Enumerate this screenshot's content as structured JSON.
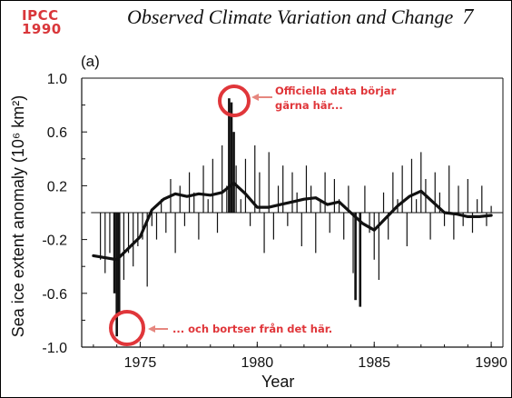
{
  "badge": {
    "line1": "IPCC",
    "line2": "1990"
  },
  "header": {
    "title": "Observed Climate Variation and Change",
    "page_number": "7"
  },
  "panel_label": "(a)",
  "annotations": {
    "top_line1": "Officiella data börjar",
    "top_line2": "gärna här...",
    "bottom": "... och bortser från det här.",
    "color": "#e0363a"
  },
  "chart_data": {
    "type": "bar",
    "xlabel": "Year",
    "ylabel": "Sea ice extent anomaly (10⁶ km²)",
    "xlim": [
      1972.5,
      1990.5
    ],
    "ylim": [
      -1.0,
      1.0
    ],
    "x_ticks": [
      "1975",
      "1980",
      "1985",
      "1990"
    ],
    "y_ticks": [
      "1.0",
      "0.6",
      "0.2",
      "-0.2",
      "-0.6",
      "-1.0"
    ],
    "grid": false,
    "series": [
      {
        "kind": "bars",
        "x": [
          1973.3,
          1973.5,
          1973.7,
          1973.9,
          1974.0,
          1974.1,
          1974.3,
          1974.5,
          1974.7,
          1974.9,
          1975.1,
          1975.3,
          1975.5,
          1975.7,
          1975.9,
          1976.1,
          1976.3,
          1976.5,
          1976.7,
          1976.9,
          1977.1,
          1977.3,
          1977.5,
          1977.7,
          1977.9,
          1978.1,
          1978.3,
          1978.5,
          1978.7,
          1978.8,
          1978.9,
          1979.0,
          1979.1,
          1979.3,
          1979.5,
          1979.7,
          1979.9,
          1980.1,
          1980.3,
          1980.5,
          1980.7,
          1980.9,
          1981.1,
          1981.3,
          1981.5,
          1981.7,
          1981.9,
          1982.1,
          1982.3,
          1982.5,
          1982.7,
          1982.9,
          1983.1,
          1983.3,
          1983.5,
          1983.7,
          1983.9,
          1984.1,
          1984.2,
          1984.4,
          1984.6,
          1984.8,
          1985.0,
          1985.2,
          1985.4,
          1985.6,
          1985.8,
          1986.0,
          1986.2,
          1986.4,
          1986.6,
          1986.8,
          1987.0,
          1987.2,
          1987.4,
          1987.6,
          1987.8,
          1988.0,
          1988.2,
          1988.4,
          1988.6,
          1988.8,
          1989.0,
          1989.2,
          1989.4,
          1989.6,
          1989.8,
          1990.0
        ],
        "values": [
          -0.35,
          -0.45,
          -0.3,
          -0.6,
          -0.92,
          -0.75,
          -0.5,
          -0.3,
          -0.4,
          -0.25,
          -0.2,
          -0.55,
          -0.1,
          -0.2,
          0.1,
          -0.15,
          0.25,
          -0.3,
          0.2,
          -0.1,
          0.3,
          0.15,
          -0.2,
          0.35,
          0.1,
          0.4,
          -0.15,
          0.5,
          0.2,
          0.85,
          0.82,
          0.6,
          0.35,
          0.1,
          0.4,
          -0.1,
          0.5,
          0.3,
          -0.3,
          0.45,
          -0.2,
          0.2,
          0.35,
          -0.1,
          0.3,
          0.15,
          -0.25,
          0.35,
          0.2,
          -0.3,
          0.1,
          0.3,
          -0.15,
          0.25,
          0.1,
          -0.2,
          0.2,
          -0.45,
          -0.65,
          -0.7,
          0.2,
          -0.15,
          -0.35,
          -0.5,
          0.15,
          -0.2,
          0.3,
          0.1,
          0.35,
          -0.25,
          0.4,
          0.1,
          0.45,
          0.25,
          -0.2,
          0.3,
          0.15,
          -0.1,
          0.35,
          -0.2,
          0.2,
          -0.1,
          0.25,
          -0.15,
          0.1,
          0.2,
          -0.1,
          0.05
        ]
      },
      {
        "kind": "smoothed",
        "x": [
          1973.0,
          1974.0,
          1975.0,
          1975.5,
          1976.0,
          1976.5,
          1977.0,
          1977.5,
          1978.0,
          1978.5,
          1979.0,
          1979.5,
          1980.0,
          1980.5,
          1981.0,
          1981.5,
          1982.0,
          1982.5,
          1983.0,
          1983.5,
          1984.0,
          1984.5,
          1985.0,
          1985.5,
          1986.0,
          1986.5,
          1987.0,
          1987.5,
          1988.0,
          1988.5,
          1989.0,
          1989.5,
          1990.0
        ],
        "values": [
          -0.32,
          -0.35,
          -0.18,
          0.02,
          0.1,
          0.14,
          0.12,
          0.14,
          0.13,
          0.15,
          0.22,
          0.14,
          0.04,
          0.04,
          0.06,
          0.08,
          0.1,
          0.11,
          0.06,
          0.08,
          0.0,
          -0.08,
          -0.13,
          -0.04,
          0.05,
          0.12,
          0.16,
          0.08,
          0.0,
          -0.01,
          -0.03,
          -0.03,
          -0.02
        ]
      }
    ]
  }
}
